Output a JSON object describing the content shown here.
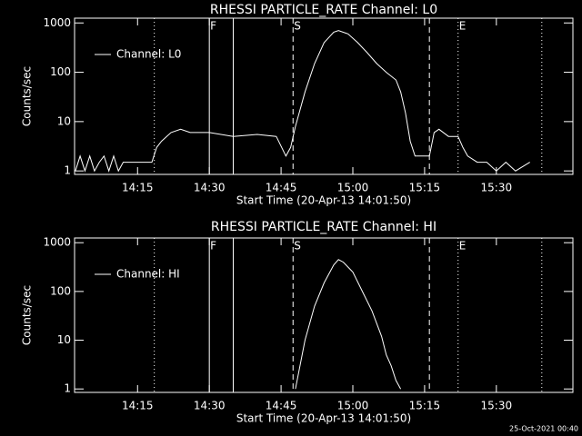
{
  "chart_data": [
    {
      "type": "line",
      "title": "RHESSI PARTICLE_RATE Channel: L0",
      "xlabel": "Start Time (20-Apr-13 14:01:50)",
      "ylabel": "Counts/sec",
      "x": [
        "14:02",
        "14:03",
        "14:04",
        "14:05",
        "14:06",
        "14:07",
        "14:08",
        "14:09",
        "14:10",
        "14:11",
        "14:12",
        "14:13",
        "14:14",
        "14:15",
        "14:16",
        "14:17",
        "14:18",
        "14:19",
        "14:20",
        "14:22",
        "14:24",
        "14:26",
        "14:28",
        "14:30",
        "14:35",
        "14:40",
        "14:44",
        "14:46",
        "14:47",
        "14:48",
        "14:50",
        "14:52",
        "14:54",
        "14:56",
        "14:57",
        "14:59",
        "15:01",
        "15:03",
        "15:05",
        "15:07",
        "15:09",
        "15:10",
        "15:11",
        "15:12",
        "15:13",
        "15:15",
        "15:16",
        "15:17",
        "15:18",
        "15:20",
        "15:22",
        "15:23",
        "15:24",
        "15:26",
        "15:28",
        "15:30",
        "15:32",
        "15:34",
        "15:37"
      ],
      "series": [
        {
          "name": "Channel: L0",
          "color": "#ffffff",
          "values": [
            1,
            2,
            1,
            2,
            1,
            1.5,
            2,
            1,
            2,
            1,
            1.5,
            1.5,
            1.5,
            1.5,
            1.5,
            1.5,
            1.5,
            3,
            4,
            6,
            7,
            6,
            6,
            6,
            5,
            5.5,
            5,
            2,
            3,
            8,
            40,
            150,
            400,
            650,
            700,
            600,
            400,
            250,
            150,
            100,
            70,
            40,
            15,
            4,
            2,
            2,
            2,
            6,
            7,
            5,
            5,
            3,
            2,
            1.5,
            1.5,
            1,
            1.5,
            1,
            1.5
          ]
        }
      ],
      "xlim": [
        "14:01:50",
        "15:46"
      ],
      "xticks": [
        "14:15",
        "14:30",
        "14:45",
        "15:00",
        "15:15",
        "15:30"
      ],
      "ylim": [
        0.85,
        1250
      ],
      "yticks": [
        1,
        10,
        100,
        1000
      ],
      "log_y": true,
      "legend": "upper left",
      "markers": [
        {
          "x": "14:18:30",
          "style": "dotted"
        },
        {
          "x": "14:30",
          "style": "solid",
          "label": "F"
        },
        {
          "x": "14:35",
          "style": "solid"
        },
        {
          "x": "14:47:30",
          "style": "dashed",
          "label": "S"
        },
        {
          "x": "15:16",
          "style": "dashed"
        },
        {
          "x": "15:22",
          "style": "dotted",
          "label": "E"
        },
        {
          "x": "15:39:30",
          "style": "dotted"
        }
      ]
    },
    {
      "type": "line",
      "title": "RHESSI PARTICLE_RATE Channel: HI",
      "xlabel": "Start Time (20-Apr-13 14:01:50)",
      "ylabel": "Counts/sec",
      "x": [
        "14:48",
        "14:50",
        "14:52",
        "14:54",
        "14:56",
        "14:57",
        "14:58",
        "15:00",
        "15:02",
        "15:04",
        "15:06",
        "15:07",
        "15:08",
        "15:09",
        "15:10"
      ],
      "series": [
        {
          "name": "Channel: HI",
          "color": "#ffffff",
          "values": [
            1,
            10,
            50,
            150,
            350,
            450,
            400,
            250,
            100,
            40,
            12,
            5,
            3,
            1.5,
            1
          ]
        }
      ],
      "xlim": [
        "14:01:50",
        "15:46"
      ],
      "xticks": [
        "14:15",
        "14:30",
        "14:45",
        "15:00",
        "15:15",
        "15:30"
      ],
      "ylim": [
        0.85,
        1250
      ],
      "yticks": [
        1,
        10,
        100,
        1000
      ],
      "log_y": true,
      "legend": "upper left",
      "markers": [
        {
          "x": "14:18:30",
          "style": "dotted"
        },
        {
          "x": "14:30",
          "style": "solid",
          "label": "F"
        },
        {
          "x": "14:35",
          "style": "solid"
        },
        {
          "x": "14:47:30",
          "style": "dashed",
          "label": "S"
        },
        {
          "x": "15:16",
          "style": "dashed"
        },
        {
          "x": "15:22",
          "style": "dotted",
          "label": "E"
        },
        {
          "x": "15:39:30",
          "style": "dotted"
        }
      ]
    }
  ],
  "footer": "25-Oct-2021 00:40"
}
